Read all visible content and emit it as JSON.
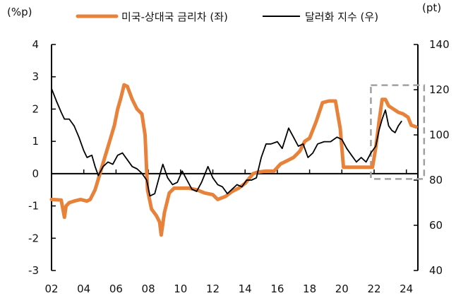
{
  "chart_data": {
    "type": "line",
    "title": "",
    "left_axis": {
      "unit_label": "(%p)",
      "ylim": [
        -3,
        4
      ],
      "ticks": [
        "4",
        "3",
        "2",
        "1",
        "0",
        "-1",
        "-2",
        "-3"
      ],
      "tick_values": [
        4,
        3,
        2,
        1,
        0,
        -1,
        -2,
        -3
      ]
    },
    "right_axis": {
      "unit_label": "(pt)",
      "ylim": [
        40,
        140
      ],
      "ticks": [
        "140",
        "120",
        "100",
        "80",
        "60",
        "40"
      ],
      "tick_values": [
        140,
        120,
        100,
        80,
        60,
        40
      ]
    },
    "x_axis": {
      "xlim": [
        2002,
        2024.7
      ],
      "ticks": [
        "02",
        "04",
        "06",
        "08",
        "10",
        "12",
        "14",
        "16",
        "18",
        "20",
        "22",
        "24"
      ],
      "tick_values": [
        2002,
        2004,
        2006,
        2008,
        2010,
        2012,
        2014,
        2016,
        2018,
        2020,
        2022,
        2024
      ]
    },
    "legend_position": "top",
    "grid": false,
    "highlight_box": {
      "x": [
        2021.8,
        2025.1
      ],
      "y_right": [
        80.5,
        122
      ],
      "style": "dashed",
      "color": "#a0a0a0"
    },
    "series": [
      {
        "name": "미국-상대국 금리차 (좌)",
        "axis": "left",
        "color": "#e8823a",
        "x": [
          2002.0,
          2002.6,
          2002.8,
          2002.9,
          2003.1,
          2003.4,
          2003.8,
          2004.2,
          2004.4,
          2004.7,
          2005.0,
          2005.3,
          2005.6,
          2005.9,
          2006.1,
          2006.3,
          2006.5,
          2006.7,
          2007.0,
          2007.3,
          2007.6,
          2007.8,
          2007.95,
          2008.2,
          2008.5,
          2008.7,
          2008.8,
          2009.0,
          2009.3,
          2009.6,
          2010.0,
          2010.5,
          2011.0,
          2011.5,
          2012.0,
          2012.3,
          2012.8,
          2013.2,
          2013.6,
          2014.0,
          2014.5,
          2014.8,
          2015.3,
          2015.8,
          2016.2,
          2016.6,
          2017.0,
          2017.4,
          2017.7,
          2018.0,
          2018.4,
          2018.8,
          2019.2,
          2019.6,
          2019.9,
          2020.1,
          2020.5,
          2021.0,
          2021.5,
          2021.9,
          2022.1,
          2022.3,
          2022.5,
          2022.7,
          2022.9,
          2023.2,
          2023.5,
          2023.8,
          2024.1,
          2024.3,
          2024.6
        ],
        "y": [
          -0.8,
          -0.82,
          -1.35,
          -1.0,
          -0.9,
          -0.85,
          -0.8,
          -0.85,
          -0.8,
          -0.5,
          0.0,
          0.5,
          1.0,
          1.5,
          2.0,
          2.35,
          2.75,
          2.7,
          2.3,
          2.0,
          1.85,
          1.2,
          -0.5,
          -1.1,
          -1.3,
          -1.5,
          -1.9,
          -1.2,
          -0.6,
          -0.45,
          -0.45,
          -0.45,
          -0.5,
          -0.6,
          -0.65,
          -0.8,
          -0.7,
          -0.55,
          -0.45,
          -0.3,
          0.0,
          0.05,
          0.08,
          0.08,
          0.3,
          0.4,
          0.5,
          0.7,
          1.0,
          1.1,
          1.6,
          2.2,
          2.25,
          2.25,
          1.4,
          0.2,
          0.2,
          0.2,
          0.2,
          0.2,
          0.8,
          1.6,
          2.3,
          2.3,
          2.1,
          2.0,
          1.9,
          1.85,
          1.75,
          1.5,
          1.45
        ]
      },
      {
        "name": "달러화 지수 (우)",
        "axis": "right",
        "color": "#000000",
        "x": [
          2002.0,
          2002.3,
          2002.6,
          2002.8,
          2003.1,
          2003.4,
          2003.7,
          2004.0,
          2004.2,
          2004.5,
          2004.7,
          2004.9,
          2005.2,
          2005.5,
          2005.8,
          2006.1,
          2006.4,
          2006.7,
          2007.0,
          2007.3,
          2007.6,
          2007.9,
          2008.1,
          2008.4,
          2008.7,
          2008.9,
          2009.2,
          2009.5,
          2009.8,
          2010.1,
          2010.4,
          2010.7,
          2011.0,
          2011.3,
          2011.7,
          2012.0,
          2012.3,
          2012.6,
          2012.9,
          2013.2,
          2013.5,
          2013.8,
          2014.1,
          2014.4,
          2014.7,
          2015.0,
          2015.3,
          2015.6,
          2016.0,
          2016.3,
          2016.7,
          2017.0,
          2017.3,
          2017.6,
          2017.9,
          2018.2,
          2018.5,
          2018.9,
          2019.3,
          2019.7,
          2020.0,
          2020.3,
          2020.6,
          2020.9,
          2021.2,
          2021.5,
          2021.8,
          2022.1,
          2022.3,
          2022.5,
          2022.7,
          2022.9,
          2023.1,
          2023.3,
          2023.5,
          2023.7
        ],
        "y": [
          120.5,
          115,
          110,
          107,
          107,
          104,
          99,
          93,
          90,
          91,
          86,
          82,
          86,
          88,
          87,
          91,
          92,
          89,
          86,
          85,
          83,
          80,
          73,
          74,
          82,
          87,
          81,
          78,
          79,
          84,
          80,
          76,
          75,
          79,
          86,
          81,
          78,
          77,
          74,
          76,
          78,
          77,
          80,
          80,
          81,
          90,
          96,
          96,
          97,
          94,
          103,
          99,
          95,
          96,
          90,
          92,
          96,
          97,
          97,
          99,
          98,
          94,
          91,
          88,
          90,
          88,
          92,
          95,
          102,
          107,
          111,
          104,
          102,
          101,
          104,
          106
        ]
      }
    ]
  }
}
